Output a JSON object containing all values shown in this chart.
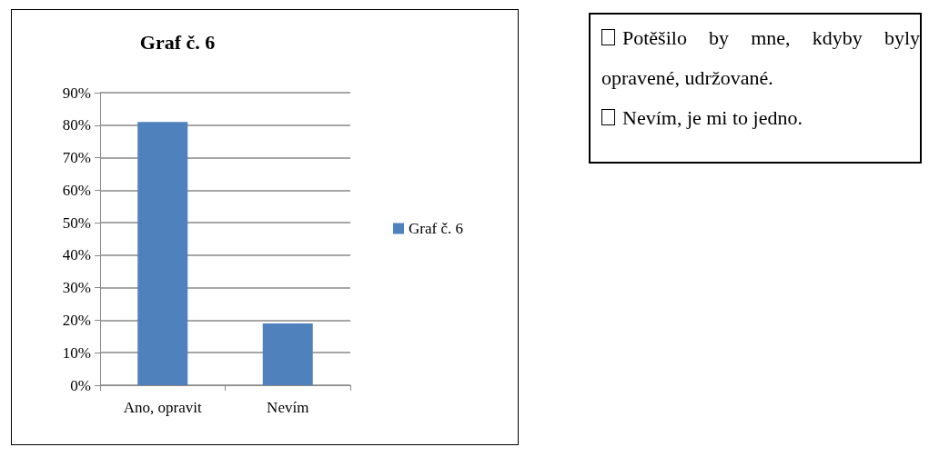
{
  "chart_data": {
    "type": "bar",
    "title": "Graf č. 6",
    "categories": [
      "Ano, opravit",
      "Nevím"
    ],
    "series": [
      {
        "name": "Graf č. 6",
        "color": "#4f81bd",
        "values": [
          81,
          19
        ]
      }
    ],
    "ylim": [
      0,
      90
    ],
    "yticks": [
      {
        "value": 0,
        "label": "0%"
      },
      {
        "value": 10,
        "label": "10%"
      },
      {
        "value": 20,
        "label": "20%"
      },
      {
        "value": 30,
        "label": "30%"
      },
      {
        "value": 40,
        "label": "40%"
      },
      {
        "value": 50,
        "label": "50%"
      },
      {
        "value": 60,
        "label": "60%"
      },
      {
        "value": 70,
        "label": "70%"
      },
      {
        "value": 80,
        "label": "80%"
      },
      {
        "value": 90,
        "label": "90%"
      }
    ],
    "grid": "y",
    "legend": "right",
    "annotations": [
      "Potěšilo by mne, kdyby byly opravené, udržované.",
      "Nevím, je mi to jedno."
    ]
  }
}
